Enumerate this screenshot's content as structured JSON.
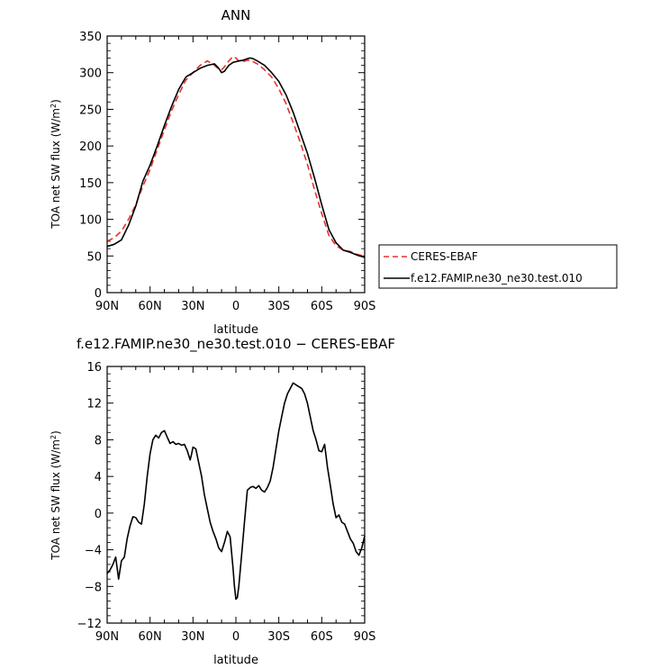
{
  "chart_data": [
    {
      "type": "line",
      "title": "ANN",
      "xlabel": "latitude",
      "ylabel": "TOA net SW flux (W/m²)",
      "xlim": [
        90,
        -90
      ],
      "ylim": [
        0,
        350
      ],
      "x_ticks": [
        {
          "value": 90,
          "label": "90N"
        },
        {
          "value": 60,
          "label": "60N"
        },
        {
          "value": 30,
          "label": "30N"
        },
        {
          "value": 0,
          "label": "0"
        },
        {
          "value": -30,
          "label": "30S"
        },
        {
          "value": -60,
          "label": "60S"
        },
        {
          "value": -90,
          "label": "90S"
        }
      ],
      "y_ticks": [
        0,
        50,
        100,
        150,
        200,
        250,
        300,
        350
      ],
      "legend_placement": "right",
      "series": [
        {
          "name": "CERES-EBAF",
          "color": "#e8322c",
          "dash": "dashed",
          "x": [
            90,
            85,
            80,
            75,
            70,
            65,
            60,
            55,
            50,
            45,
            40,
            35,
            30,
            25,
            20,
            15,
            12,
            10,
            8,
            5,
            2,
            0,
            -2,
            -5,
            -8,
            -10,
            -12,
            -15,
            -20,
            -25,
            -30,
            -35,
            -40,
            -45,
            -50,
            -55,
            -60,
            -65,
            -70,
            -75,
            -80,
            -85,
            -90
          ],
          "y": [
            70,
            75,
            84,
            100,
            120,
            145,
            168,
            195,
            222,
            248,
            270,
            290,
            300,
            310,
            316,
            310,
            305,
            304,
            308,
            316,
            322,
            320,
            316,
            315,
            317,
            317,
            315,
            312,
            304,
            294,
            278,
            258,
            232,
            205,
            175,
            140,
            108,
            78,
            64,
            58,
            56,
            52,
            50
          ]
        },
        {
          "name": "f.e12.FAMIP.ne30_ne30.test.010",
          "color": "#000000",
          "dash": "solid",
          "x": [
            90,
            85,
            80,
            75,
            70,
            65,
            60,
            55,
            50,
            45,
            40,
            35,
            30,
            25,
            20,
            15,
            12,
            10,
            8,
            5,
            2,
            0,
            -2,
            -5,
            -8,
            -10,
            -12,
            -15,
            -20,
            -25,
            -30,
            -35,
            -40,
            -45,
            -50,
            -55,
            -60,
            -65,
            -70,
            -75,
            -80,
            -85,
            -90
          ],
          "y": [
            63,
            66,
            72,
            92,
            118,
            152,
            174,
            200,
            228,
            254,
            277,
            294,
            300,
            306,
            310,
            312,
            306,
            300,
            302,
            310,
            314,
            315,
            316,
            317,
            319,
            320,
            319,
            316,
            310,
            300,
            288,
            270,
            246,
            218,
            190,
            156,
            120,
            86,
            68,
            58,
            55,
            51,
            48
          ]
        }
      ]
    },
    {
      "type": "line",
      "title": "f.e12.FAMIP.ne30_ne30.test.010 − CERES-EBAF",
      "xlabel": "latitude",
      "ylabel": "TOA net SW flux (W/m²)",
      "xlim": [
        90,
        -90
      ],
      "ylim": [
        -12,
        16
      ],
      "x_ticks": [
        {
          "value": 90,
          "label": "90N"
        },
        {
          "value": 60,
          "label": "60N"
        },
        {
          "value": 30,
          "label": "30N"
        },
        {
          "value": 0,
          "label": "0"
        },
        {
          "value": -30,
          "label": "30S"
        },
        {
          "value": -60,
          "label": "60S"
        },
        {
          "value": -90,
          "label": "90S"
        }
      ],
      "y_ticks": [
        -12,
        -8,
        -4,
        0,
        4,
        8,
        12,
        16
      ],
      "series": [
        {
          "color": "#000000",
          "dash": "solid",
          "x": [
            90,
            88,
            86,
            84,
            83,
            82,
            80,
            78,
            76,
            74,
            72,
            70,
            68,
            66,
            64,
            62,
            60,
            58,
            56,
            54,
            52,
            50,
            48,
            46,
            44,
            42,
            40,
            38,
            36,
            34,
            32,
            31,
            30,
            28,
            26,
            24,
            22,
            20,
            18,
            16,
            14,
            12,
            10,
            8,
            6,
            4,
            2,
            1,
            0,
            -1,
            -2,
            -4,
            -6,
            -8,
            -10,
            -12,
            -14,
            -16,
            -18,
            -20,
            -22,
            -24,
            -26,
            -28,
            -30,
            -32,
            -34,
            -36,
            -38,
            -40,
            -42,
            -44,
            -46,
            -48,
            -50,
            -52,
            -54,
            -56,
            -58,
            -60,
            -62,
            -64,
            -66,
            -68,
            -70,
            -72,
            -74,
            -76,
            -78,
            -80,
            -82,
            -84,
            -86,
            -88,
            -90
          ],
          "y": [
            -6.6,
            -6.2,
            -5.6,
            -4.8,
            -6.0,
            -7.2,
            -5.2,
            -4.8,
            -2.8,
            -1.4,
            -0.4,
            -0.5,
            -1.0,
            -1.2,
            1.0,
            4.0,
            6.5,
            8.0,
            8.5,
            8.2,
            8.8,
            9.0,
            8.3,
            7.6,
            7.8,
            7.5,
            7.6,
            7.4,
            7.5,
            6.8,
            5.8,
            6.4,
            7.2,
            7.0,
            5.5,
            4.0,
            2.0,
            0.5,
            -1.0,
            -2.0,
            -2.8,
            -3.8,
            -4.2,
            -3.2,
            -2.0,
            -2.6,
            -6.0,
            -8.0,
            -9.4,
            -9.2,
            -8.0,
            -4.5,
            -1.0,
            2.5,
            2.8,
            2.9,
            2.7,
            3.0,
            2.5,
            2.3,
            2.8,
            3.5,
            5.0,
            7.0,
            9.0,
            10.5,
            12.0,
            13.0,
            13.6,
            14.2,
            14.0,
            13.8,
            13.6,
            13.0,
            12.0,
            10.5,
            9.0,
            8.0,
            6.8,
            6.7,
            7.5,
            5.0,
            3.0,
            1.0,
            -0.5,
            -0.2,
            -1.0,
            -1.2,
            -2.0,
            -2.8,
            -3.3,
            -4.2,
            -4.6,
            -3.8,
            -2.5
          ]
        }
      ]
    }
  ]
}
